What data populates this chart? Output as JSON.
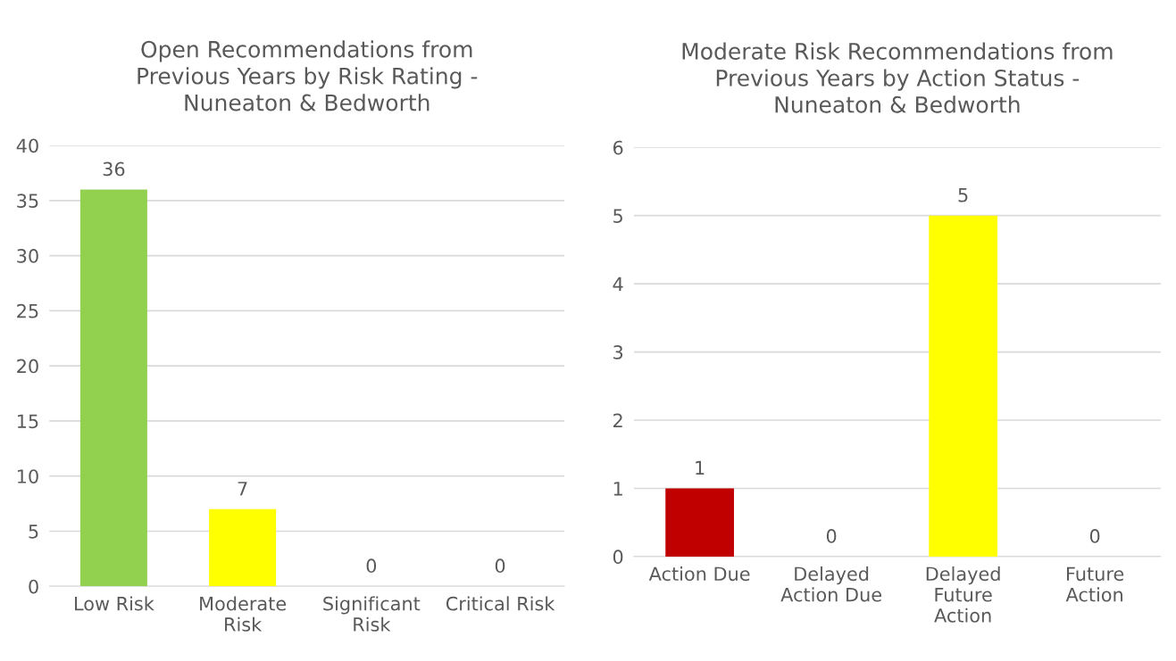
{
  "chart_data": [
    {
      "type": "bar",
      "title": "Open Recommendations from\nPrevious Years by Risk Rating -\nNuneaton & Bedworth",
      "categories": [
        "Low Risk",
        "Moderate\nRisk",
        "Significant\nRisk",
        "Critical Risk"
      ],
      "values": [
        36,
        7,
        0,
        0
      ],
      "colors": [
        "#92d050",
        "#ffff00",
        "#ffc000",
        "#c00000"
      ],
      "ylim": [
        0,
        40
      ],
      "yticks": [
        0,
        5,
        10,
        15,
        20,
        25,
        30,
        35,
        40
      ],
      "grid": "y",
      "data_labels": true
    },
    {
      "type": "bar",
      "title": "Moderate Risk Recommendations from\nPrevious Years by Action Status -\nNuneaton & Bedworth",
      "categories": [
        "Action Due",
        "Delayed\nAction Due",
        "Delayed\nFuture\nAction",
        "Future\nAction"
      ],
      "values": [
        1,
        0,
        5,
        0
      ],
      "colors": [
        "#c00000",
        "#ff0000",
        "#ffff00",
        "#92d050"
      ],
      "ylim": [
        0,
        6
      ],
      "yticks": [
        0,
        1,
        2,
        3,
        4,
        5,
        6
      ],
      "grid": "y",
      "data_labels": true
    }
  ]
}
